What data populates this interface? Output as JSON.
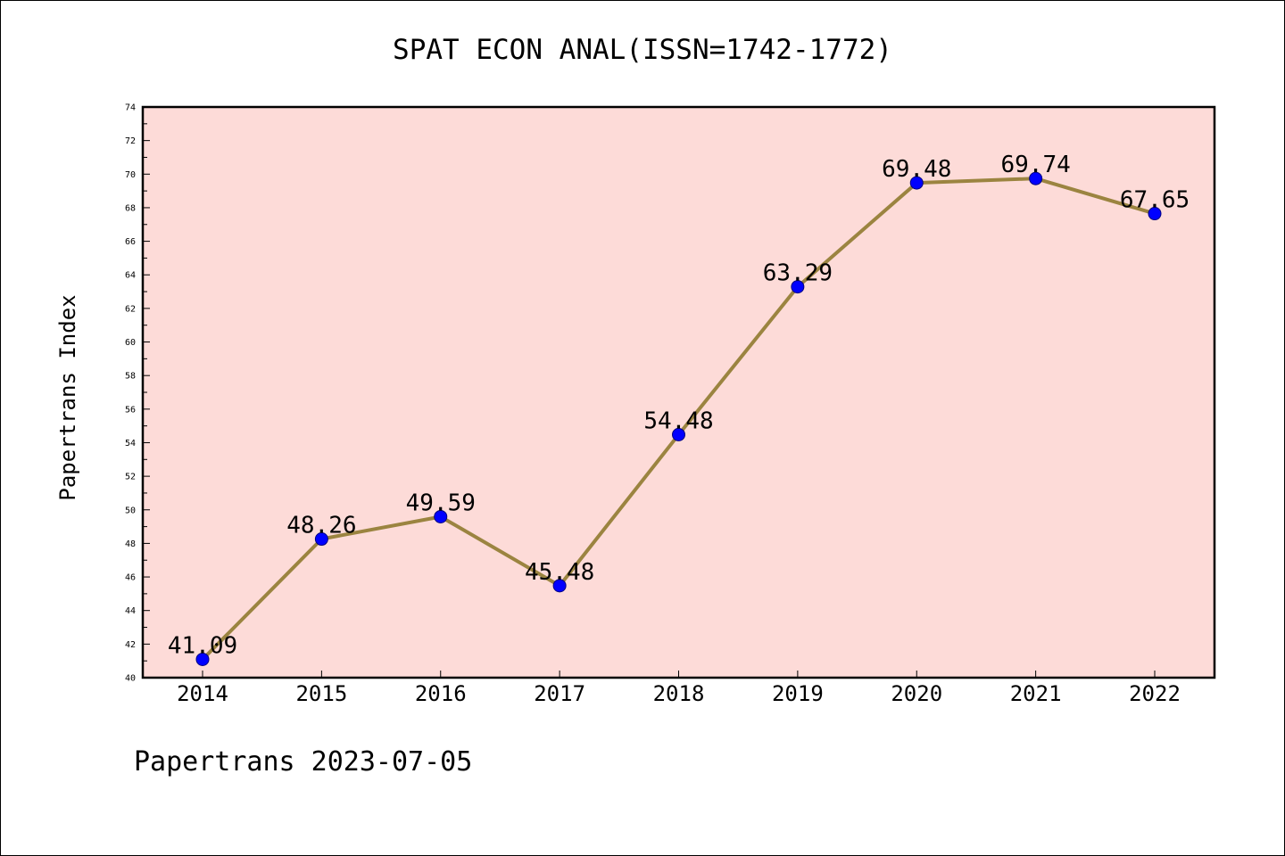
{
  "chart_data": {
    "type": "line",
    "title": "SPAT ECON ANAL(ISSN=1742-1772)",
    "xlabel": "",
    "ylabel": "Papertrans Index",
    "categories": [
      "2014",
      "2015",
      "2016",
      "2017",
      "2018",
      "2019",
      "2020",
      "2021",
      "2022"
    ],
    "values": [
      41.09,
      48.26,
      49.59,
      45.48,
      54.48,
      63.29,
      69.48,
      69.74,
      67.65
    ],
    "data_labels": [
      "41.09",
      "48.26",
      "49.59",
      "45.48",
      "54.48",
      "63.29",
      "69.48",
      "69.74",
      "67.65"
    ],
    "ylim": [
      40,
      74
    ],
    "yticks": [
      "40",
      "42",
      "44",
      "46",
      "48",
      "50",
      "52",
      "54",
      "56",
      "58",
      "60",
      "62",
      "64",
      "66",
      "68",
      "70",
      "72",
      "74"
    ],
    "grid": false,
    "legend": "none",
    "colors": {
      "plot_background": "#fddbd8",
      "line": "#9b8440",
      "marker": "#0000ff",
      "marker_edge": "#000080"
    }
  },
  "footer": "Papertrans 2023-07-05"
}
